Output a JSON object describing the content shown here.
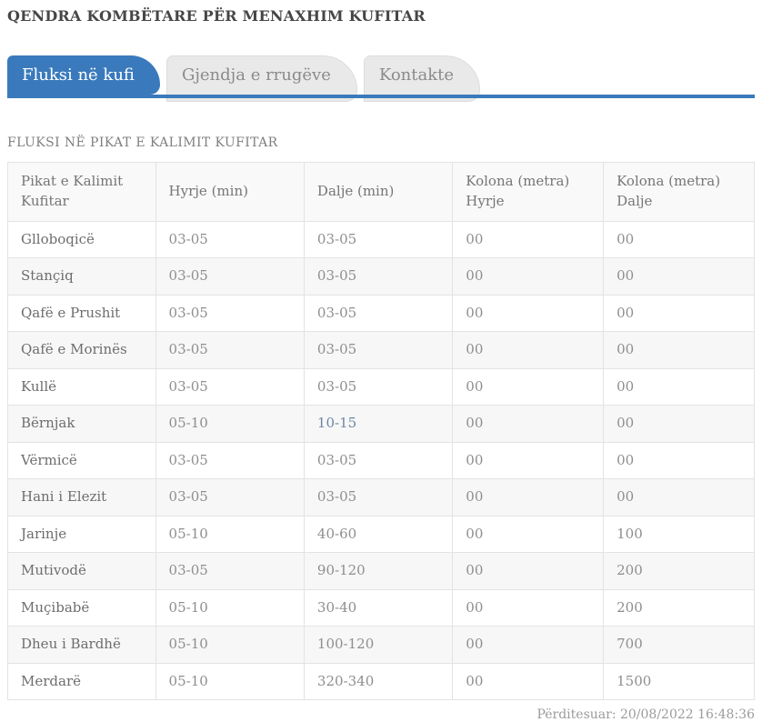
{
  "colors": {
    "accent": "#3a7abc",
    "active_tab_text": "#ffffff",
    "exit_highlight": "#6d86a4"
  },
  "header": {
    "title": "QENDRA KOMBËTARE PËR MENAXHIM KUFITAR"
  },
  "tabs": [
    {
      "label": "Fluksi në kufi",
      "active": true
    },
    {
      "label": "Gjendja e rrugëve",
      "active": false
    },
    {
      "label": "Kontakte",
      "active": false
    }
  ],
  "section": {
    "heading": "FLUKSI NË PIKAT E KALIMIT KUFITAR"
  },
  "table": {
    "columns": [
      "Pikat e Kalimit Kufitar",
      "Hyrje (min)",
      "Dalje (min)",
      "Kolona (metra) Hyrje",
      "Kolona (metra) Dalje"
    ],
    "rows": [
      {
        "name": "Glloboqicë",
        "hyrje": "03-05",
        "dalje": "03-05",
        "kolona_hyrje": "00",
        "kolona_dalje": "00"
      },
      {
        "name": "Stançiq",
        "hyrje": "03-05",
        "dalje": "03-05",
        "kolona_hyrje": "00",
        "kolona_dalje": "00"
      },
      {
        "name": "Qafë e Prushit",
        "hyrje": "03-05",
        "dalje": "03-05",
        "kolona_hyrje": "00",
        "kolona_dalje": "00"
      },
      {
        "name": "Qafë e Morinës",
        "hyrje": "03-05",
        "dalje": "03-05",
        "kolona_hyrje": "00",
        "kolona_dalje": "00"
      },
      {
        "name": "Kullë",
        "hyrje": "03-05",
        "dalje": "03-05",
        "kolona_hyrje": "00",
        "kolona_dalje": "00"
      },
      {
        "name": "Bërnjak",
        "hyrje": "05-10",
        "dalje": "10-15",
        "kolona_hyrje": "00",
        "kolona_dalje": "00",
        "dalje_highlight": true
      },
      {
        "name": "Vërmicë",
        "hyrje": "03-05",
        "dalje": "03-05",
        "kolona_hyrje": "00",
        "kolona_dalje": "00"
      },
      {
        "name": "Hani i Elezit",
        "hyrje": "03-05",
        "dalje": "03-05",
        "kolona_hyrje": "00",
        "kolona_dalje": "00"
      },
      {
        "name": "Jarinje",
        "hyrje": "05-10",
        "dalje": "40-60",
        "kolona_hyrje": "00",
        "kolona_dalje": "100"
      },
      {
        "name": "Mutivodë",
        "hyrje": "03-05",
        "dalje": "90-120",
        "kolona_hyrje": "00",
        "kolona_dalje": "200"
      },
      {
        "name": "Muçibabë",
        "hyrje": "05-10",
        "dalje": "30-40",
        "kolona_hyrje": "00",
        "kolona_dalje": "200"
      },
      {
        "name": "Dheu i Bardhë",
        "hyrje": "05-10",
        "dalje": "100-120",
        "kolona_hyrje": "00",
        "kolona_dalje": "700"
      },
      {
        "name": "Merdarë",
        "hyrje": "05-10",
        "dalje": "320-340",
        "kolona_hyrje": "00",
        "kolona_dalje": "1500"
      }
    ]
  },
  "footer": {
    "updated_label": "Përditesuar: 20/08/2022 16:48:36"
  }
}
